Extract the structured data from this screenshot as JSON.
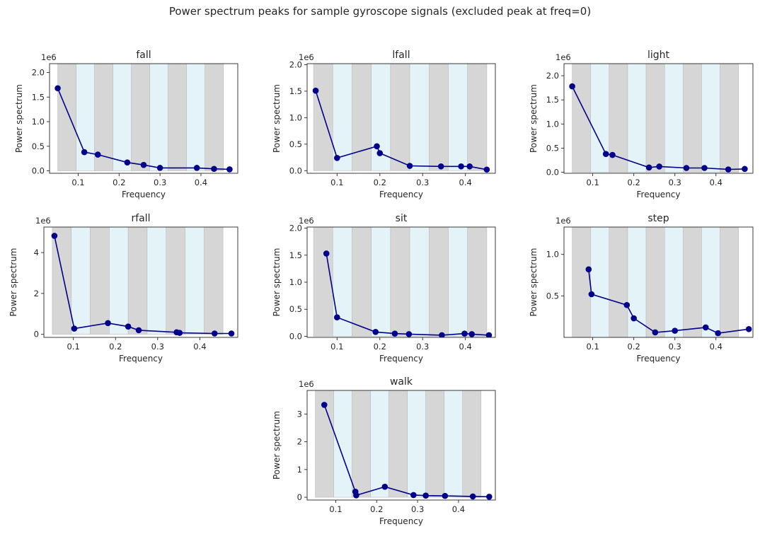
{
  "figure": {
    "title": "Power spectrum peaks for sample gyroscope signals (excluded peak at freq=0)"
  },
  "colors": {
    "line": "#00008b",
    "band_gray": "#d6d6d6",
    "band_blue": "#e3f3f8",
    "axes": "#262626"
  },
  "chart_data": [
    {
      "type": "line",
      "title": "fall",
      "xlabel": "Frequency",
      "ylabel": "Power spectrum",
      "y_offset_label": "1e6",
      "xlim": [
        0.03,
        0.49
      ],
      "ylim": [
        -0.05,
        2.18
      ],
      "xticks": [
        0.1,
        0.2,
        0.3,
        0.4
      ],
      "xtick_labels": [
        "0.1",
        "0.2",
        "0.3",
        "0.4"
      ],
      "yticks": [
        0,
        0.5,
        1.0,
        1.5,
        2.0
      ],
      "ytick_labels": [
        "0.0",
        "0.5",
        "1.0",
        "1.5",
        "2.0"
      ],
      "bands": [
        0.05,
        0.095,
        0.14,
        0.185,
        0.23,
        0.275,
        0.32,
        0.365,
        0.41,
        0.455
      ],
      "band_height": 2.18,
      "x": [
        0.05,
        0.115,
        0.148,
        0.22,
        0.26,
        0.3,
        0.39,
        0.432,
        0.47
      ],
      "y": [
        1.68,
        0.38,
        0.33,
        0.17,
        0.12,
        0.06,
        0.06,
        0.04,
        0.03
      ]
    },
    {
      "type": "line",
      "title": "lfall",
      "xlabel": "Frequency",
      "ylabel": "Power spectrum",
      "y_offset_label": "1e6",
      "xlim": [
        0.03,
        0.47
      ],
      "ylim": [
        -0.05,
        2.02
      ],
      "xticks": [
        0.1,
        0.2,
        0.3,
        0.4
      ],
      "xtick_labels": [
        "0.1",
        "0.2",
        "0.3",
        "0.4"
      ],
      "yticks": [
        0,
        0.5,
        1.0,
        1.5,
        2.0
      ],
      "ytick_labels": [
        "0.0",
        "0.5",
        "1.0",
        "1.5",
        "2.0"
      ],
      "bands": [
        0.045,
        0.09,
        0.135,
        0.18,
        0.225,
        0.27,
        0.315,
        0.36,
        0.405,
        0.45
      ],
      "band_height": 2.02,
      "x": [
        0.05,
        0.1,
        0.193,
        0.2,
        0.27,
        0.343,
        0.39,
        0.41,
        0.45
      ],
      "y": [
        1.51,
        0.24,
        0.46,
        0.33,
        0.09,
        0.08,
        0.08,
        0.08,
        0.02
      ]
    },
    {
      "type": "line",
      "title": "light",
      "xlabel": "Frequency",
      "ylabel": "Power spectrum",
      "y_offset_label": "1e6",
      "xlim": [
        0.03,
        0.49
      ],
      "ylim": [
        -0.02,
        2.25
      ],
      "xticks": [
        0.1,
        0.2,
        0.3,
        0.4
      ],
      "xtick_labels": [
        "0.1",
        "0.2",
        "0.3",
        "0.4"
      ],
      "yticks": [
        0,
        0.5,
        1.0,
        1.5,
        2.0
      ],
      "ytick_labels": [
        "0.0",
        "0.5",
        "1.0",
        "1.5",
        "2.0"
      ],
      "bands": [
        0.05,
        0.095,
        0.14,
        0.185,
        0.23,
        0.275,
        0.32,
        0.365,
        0.41,
        0.455
      ],
      "band_height": 2.25,
      "x": [
        0.05,
        0.132,
        0.148,
        0.237,
        0.262,
        0.328,
        0.372,
        0.43,
        0.47
      ],
      "y": [
        1.78,
        0.38,
        0.36,
        0.1,
        0.12,
        0.09,
        0.09,
        0.06,
        0.07
      ]
    },
    {
      "type": "line",
      "title": "rfall",
      "xlabel": "Frequency",
      "ylabel": "Power spectrum",
      "y_offset_label": "1e6",
      "xlim": [
        0.03,
        0.49
      ],
      "ylim": [
        -0.15,
        5.25
      ],
      "xticks": [
        0.1,
        0.2,
        0.3,
        0.4
      ],
      "xtick_labels": [
        "0.1",
        "0.2",
        "0.3",
        "0.4"
      ],
      "yticks": [
        0,
        2,
        4
      ],
      "ytick_labels": [
        "0",
        "2",
        "4"
      ],
      "bands": [
        0.05,
        0.095,
        0.14,
        0.185,
        0.23,
        0.275,
        0.32,
        0.365,
        0.41,
        0.455
      ],
      "band_height": 5.25,
      "x": [
        0.055,
        0.102,
        0.182,
        0.23,
        0.255,
        0.345,
        0.352,
        0.435,
        0.475
      ],
      "y": [
        4.82,
        0.28,
        0.55,
        0.38,
        0.2,
        0.1,
        0.07,
        0.04,
        0.04
      ]
    },
    {
      "type": "line",
      "title": "sit",
      "xlabel": "Frequency",
      "ylabel": "Power spectrum",
      "y_offset_label": "1e6",
      "xlim": [
        0.03,
        0.47
      ],
      "ylim": [
        -0.02,
        2.02
      ],
      "xticks": [
        0.1,
        0.2,
        0.3,
        0.4
      ],
      "xtick_labels": [
        "0.1",
        "0.2",
        "0.3",
        "0.4"
      ],
      "yticks": [
        0,
        0.5,
        1.0,
        1.5,
        2.0
      ],
      "ytick_labels": [
        "0.0",
        "0.5",
        "1.0",
        "1.5",
        "2.0"
      ],
      "bands": [
        0.045,
        0.09,
        0.135,
        0.18,
        0.225,
        0.27,
        0.315,
        0.36,
        0.405,
        0.45
      ],
      "band_height": 2.02,
      "x": [
        0.075,
        0.1,
        0.19,
        0.235,
        0.268,
        0.345,
        0.398,
        0.415,
        0.455
      ],
      "y": [
        1.53,
        0.35,
        0.08,
        0.05,
        0.04,
        0.02,
        0.05,
        0.04,
        0.02
      ]
    },
    {
      "type": "line",
      "title": "step",
      "xlabel": "Frequency",
      "ylabel": "Power spectrum",
      "y_offset_label": "1e6",
      "xlim": [
        0.03,
        0.49
      ],
      "ylim": [
        0.0,
        1.33
      ],
      "xticks": [
        0.1,
        0.2,
        0.3,
        0.4
      ],
      "xtick_labels": [
        "0.1",
        "0.2",
        "0.3",
        "0.4"
      ],
      "yticks": [
        0.5,
        1.0
      ],
      "ytick_labels": [
        "0.5",
        "1.0"
      ],
      "bands": [
        0.05,
        0.095,
        0.14,
        0.185,
        0.23,
        0.275,
        0.32,
        0.365,
        0.41,
        0.455
      ],
      "band_height": 1.33,
      "x": [
        0.09,
        0.097,
        0.183,
        0.2,
        0.252,
        0.3,
        0.375,
        0.405,
        0.48
      ],
      "y": [
        0.82,
        0.52,
        0.39,
        0.23,
        0.06,
        0.08,
        0.12,
        0.05,
        0.1
      ]
    },
    {
      "type": "line",
      "title": "walk",
      "xlabel": "Frequency",
      "ylabel": "Power spectrum",
      "y_offset_label": "1e6",
      "xlim": [
        0.03,
        0.49
      ],
      "ylim": [
        -0.1,
        3.85
      ],
      "xticks": [
        0.1,
        0.2,
        0.3,
        0.4
      ],
      "xtick_labels": [
        "0.1",
        "0.2",
        "0.3",
        "0.4"
      ],
      "yticks": [
        0,
        1,
        2,
        3
      ],
      "ytick_labels": [
        "0",
        "1",
        "2",
        "3"
      ],
      "bands": [
        0.05,
        0.095,
        0.14,
        0.185,
        0.23,
        0.275,
        0.32,
        0.365,
        0.41,
        0.455
      ],
      "band_height": 3.85,
      "x": [
        0.072,
        0.148,
        0.15,
        0.22,
        0.29,
        0.32,
        0.367,
        0.435,
        0.475
      ],
      "y": [
        3.33,
        0.2,
        0.07,
        0.38,
        0.08,
        0.06,
        0.05,
        0.03,
        0.02
      ]
    }
  ]
}
